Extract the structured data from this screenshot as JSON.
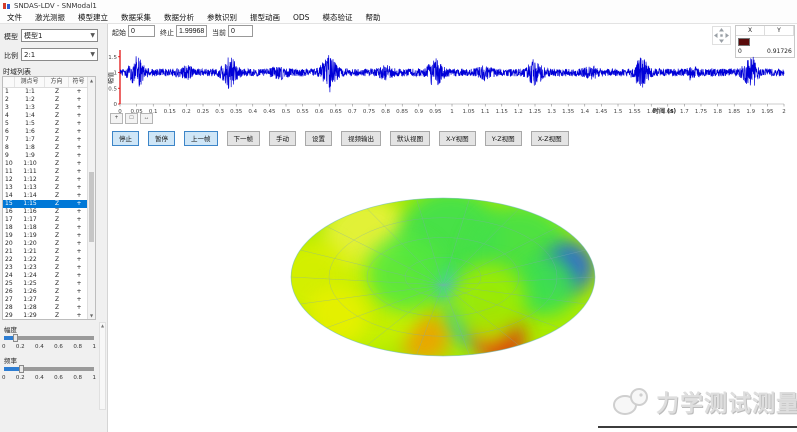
{
  "window": {
    "title": "SNDAS-LDV - SNModal1"
  },
  "menu": {
    "items": [
      "文件",
      "激光测振",
      "模型建立",
      "数据采集",
      "数据分析",
      "参数识别",
      "振型动画",
      "ODS",
      "模态验证",
      "帮助"
    ]
  },
  "sidebar": {
    "model_label": "模型",
    "model_value": "模型1",
    "ratio_label": "比例",
    "ratio_value": "2:1",
    "list_title": "时域列表",
    "table": {
      "headers": [
        "测点号",
        "方向",
        "符号"
      ],
      "selected_row": 15,
      "rows": [
        [
          "1",
          "1:1",
          "Z",
          "+"
        ],
        [
          "2",
          "1:2",
          "Z",
          "+"
        ],
        [
          "3",
          "1:3",
          "Z",
          "+"
        ],
        [
          "4",
          "1:4",
          "Z",
          "+"
        ],
        [
          "5",
          "1:5",
          "Z",
          "+"
        ],
        [
          "6",
          "1:6",
          "Z",
          "+"
        ],
        [
          "7",
          "1:7",
          "Z",
          "+"
        ],
        [
          "8",
          "1:8",
          "Z",
          "+"
        ],
        [
          "9",
          "1:9",
          "Z",
          "+"
        ],
        [
          "10",
          "1:10",
          "Z",
          "+"
        ],
        [
          "11",
          "1:11",
          "Z",
          "+"
        ],
        [
          "12",
          "1:12",
          "Z",
          "+"
        ],
        [
          "13",
          "1:13",
          "Z",
          "+"
        ],
        [
          "14",
          "1:14",
          "Z",
          "+"
        ],
        [
          "15",
          "1:15",
          "Z",
          "+"
        ],
        [
          "16",
          "1:16",
          "Z",
          "+"
        ],
        [
          "17",
          "1:17",
          "Z",
          "+"
        ],
        [
          "18",
          "1:18",
          "Z",
          "+"
        ],
        [
          "19",
          "1:19",
          "Z",
          "+"
        ],
        [
          "20",
          "1:20",
          "Z",
          "+"
        ],
        [
          "21",
          "1:21",
          "Z",
          "+"
        ],
        [
          "22",
          "1:22",
          "Z",
          "+"
        ],
        [
          "23",
          "1:23",
          "Z",
          "+"
        ],
        [
          "24",
          "1:24",
          "Z",
          "+"
        ],
        [
          "25",
          "1:25",
          "Z",
          "+"
        ],
        [
          "26",
          "1:26",
          "Z",
          "+"
        ],
        [
          "27",
          "1:27",
          "Z",
          "+"
        ],
        [
          "28",
          "1:28",
          "Z",
          "+"
        ],
        [
          "29",
          "1:29",
          "Z",
          "+"
        ]
      ]
    },
    "amplitude": {
      "label": "幅度",
      "ticks": [
        "0",
        "0.2",
        "0.4",
        "0.6",
        "0.8",
        "1"
      ]
    },
    "frequency": {
      "label": "频率",
      "ticks": [
        "0",
        "0.2",
        "0.4",
        "0.6",
        "0.8",
        "1"
      ]
    }
  },
  "controls": {
    "start_label": "起始",
    "start_value": "0",
    "stop_label": "终止",
    "stop_value": "1.99968",
    "current_label": "当前",
    "current_value": "0"
  },
  "readout": {
    "col_x": "X",
    "col_y": "Y",
    "x_value": "0",
    "y_value": "0.91726",
    "swatch_color": "#5a0b0b"
  },
  "chart": {
    "ylabel": "幅值",
    "xlabel": "时间 (s)",
    "yticks": [
      "0",
      "0.5",
      "1",
      "1.5"
    ],
    "xticks": [
      "0",
      "0.05",
      "0.1",
      "0.15",
      "0.2",
      "0.25",
      "0.3",
      "0.35",
      "0.4",
      "0.45",
      "0.5",
      "0.55",
      "0.6",
      "0.65",
      "0.7",
      "0.75",
      "0.8",
      "0.85",
      "0.9",
      "0.95",
      "1",
      "1.05",
      "1.1",
      "1.15",
      "1.2",
      "1.25",
      "1.3",
      "1.35",
      "1.4",
      "1.45",
      "1.5",
      "1.55",
      "1.6",
      "1.65",
      "1.7",
      "1.75",
      "1.8",
      "1.85",
      "1.9",
      "1.95",
      "2"
    ],
    "waveform": {
      "color": "#0000d8",
      "baseline": 1,
      "noise": 0.12,
      "sigma": 0.015,
      "t_range": [
        0,
        2
      ],
      "bursts": [
        {
          "t": 0.05,
          "a": 0.4
        },
        {
          "t": 0.2,
          "a": 0.12
        },
        {
          "t": 0.33,
          "a": 0.42
        },
        {
          "t": 0.48,
          "a": 0.15
        },
        {
          "t": 0.63,
          "a": 0.52
        },
        {
          "t": 0.8,
          "a": 0.13
        },
        {
          "t": 0.95,
          "a": 0.38
        },
        {
          "t": 1.1,
          "a": 0.14
        },
        {
          "t": 1.25,
          "a": 0.36
        },
        {
          "t": 1.42,
          "a": 0.12
        },
        {
          "t": 1.57,
          "a": 0.4
        },
        {
          "t": 1.72,
          "a": 0.13
        },
        {
          "t": 1.9,
          "a": 0.42
        }
      ]
    }
  },
  "mini_toolbar": {
    "buttons": [
      "+",
      "□",
      "↔"
    ]
  },
  "playbar": {
    "buttons": [
      {
        "label": "停止",
        "active": true
      },
      {
        "label": "暂停",
        "active": true
      },
      {
        "label": "上一帧",
        "active": true
      },
      {
        "label": "下一帧",
        "active": false
      },
      {
        "label": "手动",
        "active": false
      },
      {
        "label": "设置",
        "active": false
      },
      {
        "label": "视频输出",
        "active": false
      },
      {
        "label": "默认视图",
        "active": false
      },
      {
        "label": "X-Y视图",
        "active": false
      },
      {
        "label": "Y-Z视图",
        "active": false
      },
      {
        "label": "X-Z视图",
        "active": false
      }
    ]
  },
  "watermark": {
    "text": "力学测试测量"
  },
  "disk": {
    "base_color": "#aaeb00",
    "mesh_color": "#7fa8b8",
    "rim_color": "#70c8c0",
    "blobs": [
      [
        -0.5,
        -0.45,
        0.3,
        "#e8f23c"
      ],
      [
        -0.85,
        0.0,
        0.25,
        "#d8f000"
      ],
      [
        0.05,
        -0.45,
        0.35,
        "#3ce050"
      ],
      [
        0.5,
        -0.25,
        0.35,
        "#44e04a"
      ],
      [
        0.83,
        -0.12,
        0.16,
        "#2559e8"
      ],
      [
        0.68,
        0.1,
        0.2,
        "#3ce050"
      ],
      [
        0.02,
        0.12,
        0.1,
        "#30c8d8"
      ],
      [
        0.18,
        0.55,
        0.16,
        "#28c8b4"
      ],
      [
        0.38,
        0.8,
        0.16,
        "#e03010"
      ],
      [
        0.3,
        0.65,
        0.12,
        "#f0a000"
      ],
      [
        -0.12,
        0.78,
        0.16,
        "#f0a000"
      ],
      [
        -0.45,
        0.35,
        0.3,
        "#c8f000"
      ],
      [
        -0.25,
        -0.05,
        0.25,
        "#55e83c"
      ],
      [
        0.3,
        0.3,
        0.25,
        "#a0ec00"
      ],
      [
        -0.7,
        0.5,
        0.2,
        "#e8f000"
      ]
    ]
  }
}
